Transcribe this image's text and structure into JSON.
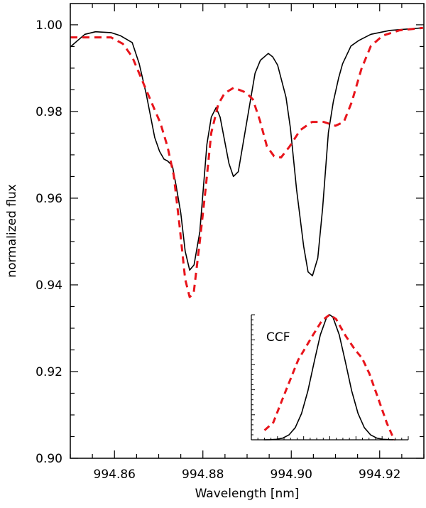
{
  "chart_data": {
    "type": "line",
    "title": "",
    "xlabel": "Wavelength [nm]",
    "ylabel": "normalized flux",
    "xlim": [
      994.85,
      994.93
    ],
    "ylim": [
      0.9,
      1.0049
    ],
    "grid": false,
    "x_ticks": [
      994.86,
      994.88,
      994.9,
      994.92
    ],
    "x_tick_labels": [
      "994.86",
      "994.88",
      "994.90",
      "994.92"
    ],
    "y_ticks": [
      0.9,
      0.92,
      0.94,
      0.96,
      0.98,
      1.0
    ],
    "y_tick_labels": [
      "0.90",
      "0.92",
      "0.94",
      "0.96",
      "0.98",
      "1.00"
    ],
    "colors": {
      "solid": "#000000",
      "dashed": "#e8141b"
    },
    "series": [
      {
        "name": "solid",
        "style": "solid",
        "color": "#000000",
        "x": [
          994.85,
          994.8533,
          994.8557,
          994.8592,
          994.8613,
          994.864,
          994.8656,
          994.8672,
          994.8691,
          994.8702,
          994.8712,
          994.872,
          994.8731,
          994.8739,
          994.875,
          994.876,
          994.877,
          994.878,
          994.8793,
          994.8809,
          994.8819,
          994.883,
          994.8839,
          994.8859,
          994.8869,
          994.888,
          994.8897,
          994.8918,
          994.893,
          994.8948,
          994.8958,
          994.8969,
          994.8988,
          994.8998,
          994.9012,
          994.9028,
          994.9038,
          994.9048,
          994.906,
          994.9071,
          994.9084,
          994.9095,
          994.9107,
          994.9116,
          994.9135,
          994.9153,
          994.918,
          994.9223,
          994.9298
        ],
        "y": [
          0.9949,
          0.9978,
          0.9984,
          0.9982,
          0.9975,
          0.9959,
          0.991,
          0.9839,
          0.974,
          0.9708,
          0.969,
          0.9686,
          0.9675,
          0.9631,
          0.9566,
          0.9478,
          0.9434,
          0.9446,
          0.9522,
          0.9724,
          0.9787,
          0.9809,
          0.9787,
          0.968,
          0.965,
          0.9661,
          0.9762,
          0.9888,
          0.9918,
          0.9934,
          0.9926,
          0.9907,
          0.9833,
          0.9762,
          0.962,
          0.9489,
          0.943,
          0.9421,
          0.9462,
          0.9577,
          0.9751,
          0.9822,
          0.9877,
          0.991,
          0.9951,
          0.9964,
          0.9978,
          0.9987,
          0.9993
        ]
      },
      {
        "name": "dashed",
        "style": "dashed",
        "color": "#e8141b",
        "x": [
          994.85,
          994.8592,
          994.8619,
          994.864,
          994.8667,
          994.8688,
          994.8704,
          994.872,
          994.8734,
          994.8747,
          994.876,
          994.877,
          994.8779,
          994.8793,
          994.8806,
          994.8819,
          994.8835,
          994.8849,
          994.887,
          994.8897,
          994.8913,
          994.8929,
          994.8945,
          994.8961,
          994.8977,
          994.8996,
          994.902,
          994.9047,
          994.9073,
          994.91,
          994.9119,
          994.9137,
          994.9159,
          994.918,
          994.9207,
          994.9244,
          994.9298
        ],
        "y": [
          0.9971,
          0.9971,
          0.9956,
          0.9926,
          0.9861,
          0.9811,
          0.9773,
          0.9719,
          0.9653,
          0.9538,
          0.9413,
          0.9372,
          0.938,
          0.95,
          0.962,
          0.9751,
          0.9817,
          0.9842,
          0.9855,
          0.9844,
          0.9828,
          0.9779,
          0.9719,
          0.9697,
          0.9694,
          0.9719,
          0.9757,
          0.9776,
          0.9776,
          0.9767,
          0.9776,
          0.9822,
          0.9899,
          0.9951,
          0.9975,
          0.9987,
          0.9993
        ]
      }
    ],
    "inset": {
      "label": "CCF",
      "xlim": [
        0,
        1
      ],
      "ylim": [
        0,
        1
      ],
      "series": [
        {
          "name": "solid",
          "style": "solid",
          "color": "#000000",
          "x": [
            0.08,
            0.12,
            0.16,
            0.2,
            0.24,
            0.28,
            0.32,
            0.36,
            0.4,
            0.44,
            0.48,
            0.5,
            0.52,
            0.56,
            0.6,
            0.64,
            0.68,
            0.72,
            0.76,
            0.8,
            0.84,
            0.88,
            0.92
          ],
          "y": [
            0.0002,
            0.001,
            0.0039,
            0.013,
            0.039,
            0.098,
            0.21,
            0.39,
            0.62,
            0.84,
            0.98,
            1.0,
            0.98,
            0.84,
            0.62,
            0.39,
            0.21,
            0.098,
            0.039,
            0.013,
            0.0039,
            0.001,
            0.0002
          ]
        },
        {
          "name": "dashed",
          "style": "dashed",
          "color": "#e8141b",
          "x": [
            0.084,
            0.14,
            0.208,
            0.299,
            0.389,
            0.45,
            0.498,
            0.54,
            0.6,
            0.661,
            0.706,
            0.752,
            0.811,
            0.864,
            0.91
          ],
          "y": [
            0.076,
            0.138,
            0.356,
            0.64,
            0.83,
            0.953,
            1.0,
            0.966,
            0.833,
            0.72,
            0.653,
            0.53,
            0.322,
            0.133,
            0.0
          ]
        }
      ]
    }
  }
}
